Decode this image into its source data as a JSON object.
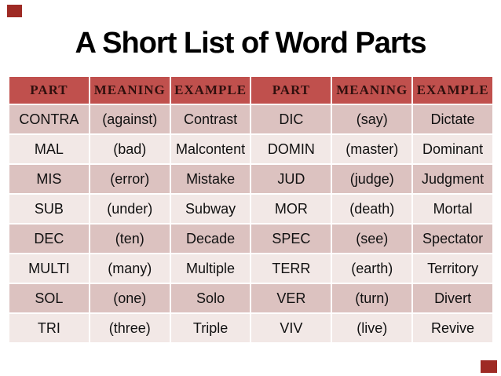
{
  "title": "A Short List of Word Parts",
  "table": {
    "headers": [
      "PART",
      "MEANING",
      "EXAMPLE",
      "PART",
      "MEANING",
      "EXAMPLE"
    ],
    "rows": [
      [
        "CONTRA",
        "(against)",
        "Contrast",
        "DIC",
        "(say)",
        "Dictate"
      ],
      [
        "MAL",
        "(bad)",
        "Malcontent",
        "DOMIN",
        "(master)",
        "Dominant"
      ],
      [
        "MIS",
        "(error)",
        "Mistake",
        "JUD",
        "(judge)",
        "Judgment"
      ],
      [
        "SUB",
        "(under)",
        "Subway",
        "MOR",
        "(death)",
        "Mortal"
      ],
      [
        "DEC",
        "(ten)",
        "Decade",
        "SPEC",
        "(see)",
        "Spectator"
      ],
      [
        "MULTI",
        "(many)",
        "Multiple",
        "TERR",
        "(earth)",
        "Territory"
      ],
      [
        "SOL",
        "(one)",
        "Solo",
        "VER",
        "(turn)",
        "Divert"
      ],
      [
        "TRI",
        "(three)",
        "Triple",
        "VIV",
        "(live)",
        "Revive"
      ]
    ]
  },
  "colors": {
    "header_bg": "#c0504d",
    "header_text": "#30100e",
    "row_odd_bg": "#dcc2c0",
    "row_even_bg": "#f2e8e6",
    "cell_text": "#111111",
    "title_text": "#000000",
    "corner_accent": "#9e2a24"
  }
}
